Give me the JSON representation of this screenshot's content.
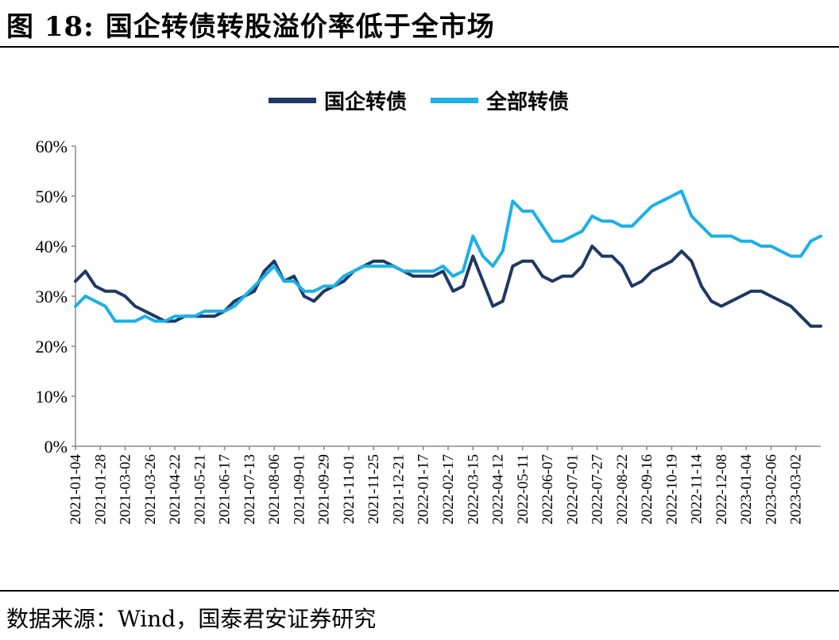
{
  "header": {
    "figure_no": "图 18:",
    "title": "国企转债转股溢价率低于全市场"
  },
  "footer": {
    "source": "数据来源：Wind，国泰君安证券研究"
  },
  "legend": [
    {
      "label": "国企转债",
      "color": "#1F3864"
    },
    {
      "label": "全部转债",
      "color": "#1AB0E8"
    }
  ],
  "chart_data": {
    "type": "line",
    "title": "",
    "xlabel": "",
    "ylabel": "",
    "ylim": [
      0,
      60
    ],
    "y_ticks": [
      "0%",
      "10%",
      "20%",
      "30%",
      "40%",
      "50%",
      "60%"
    ],
    "x_tick_labels": [
      "2021-01-04",
      "2021-01-28",
      "2021-03-02",
      "2021-03-26",
      "2021-04-22",
      "2021-05-21",
      "2021-06-17",
      "2021-07-13",
      "2021-08-06",
      "2021-09-01",
      "2021-09-29",
      "2021-11-01",
      "2021-11-25",
      "2021-12-21",
      "2022-01-17",
      "2022-02-17",
      "2022-03-15",
      "2022-04-12",
      "2022-05-11",
      "2022-06-07",
      "2022-07-01",
      "2022-07-27",
      "2022-08-22",
      "2022-09-16",
      "2022-10-19",
      "2022-11-14",
      "2022-12-08",
      "2023-01-04",
      "2023-02-06",
      "2023-03-02"
    ],
    "grid": false,
    "legend_position": "top-center",
    "series": [
      {
        "name": "国企转债",
        "values": [
          33,
          35,
          32,
          31,
          31,
          30,
          28,
          27,
          26,
          25,
          25,
          26,
          26,
          26,
          26,
          27,
          29,
          30,
          31,
          35,
          37,
          33,
          34,
          30,
          29,
          31,
          32,
          33,
          35,
          36,
          37,
          37,
          36,
          35,
          34,
          34,
          34,
          35,
          31,
          32,
          38,
          33,
          28,
          29,
          36,
          37,
          37,
          34,
          33,
          34,
          34,
          36,
          40,
          38,
          38,
          36,
          32,
          33,
          35,
          36,
          37,
          39,
          37,
          32,
          29,
          28,
          29,
          30,
          31,
          31,
          30,
          29,
          28,
          26,
          24,
          24
        ]
      },
      {
        "name": "全部转债",
        "values": [
          28,
          30,
          29,
          28,
          25,
          25,
          25,
          26,
          25,
          25,
          26,
          26,
          26,
          27,
          27,
          27,
          28,
          30,
          32,
          34,
          36,
          33,
          33,
          31,
          31,
          32,
          32,
          34,
          35,
          36,
          36,
          36,
          36,
          35,
          35,
          35,
          35,
          36,
          34,
          35,
          42,
          38,
          36,
          39,
          49,
          47,
          47,
          44,
          41,
          41,
          42,
          43,
          46,
          45,
          45,
          44,
          44,
          46,
          48,
          49,
          50,
          51,
          46,
          44,
          42,
          42,
          42,
          41,
          41,
          40,
          40,
          39,
          38,
          38,
          41,
          42
        ]
      }
    ]
  }
}
